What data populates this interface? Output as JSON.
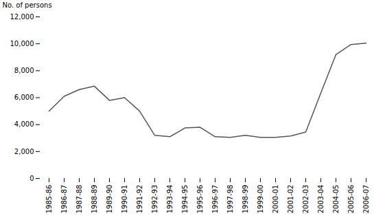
{
  "chart_data": {
    "type": "line",
    "categories": [
      "1985-86",
      "1986-87",
      "1987-88",
      "1988-89",
      "1989-90",
      "1990-91",
      "1991-92",
      "1992-93",
      "1993-94",
      "1994-95",
      "1995-96",
      "1996-97",
      "1997-98",
      "1998-99",
      "1999-00",
      "2000-01",
      "2001-02",
      "2002-03",
      "2003-04",
      "2004-05",
      "2005-06",
      "2006-07"
    ],
    "values": [
      5000,
      6100,
      6600,
      6850,
      5800,
      6000,
      5000,
      3200,
      3100,
      3750,
      3800,
      3100,
      3050,
      3200,
      3050,
      3050,
      3150,
      3450,
      6350,
      9200,
      9950,
      10050
    ],
    "color": "#555555",
    "ylabel": "No. of persons",
    "ylim": [
      0,
      12000
    ],
    "yticks": [
      0,
      {
        "value": 2000,
        "label": "2,000"
      },
      {
        "value": 4000,
        "label": "4,000"
      },
      {
        "value": 6000,
        "label": "6,000"
      },
      {
        "value": 8000,
        "label": "8,000"
      },
      {
        "value": 10000,
        "label": "10,000"
      },
      {
        "value": 12000,
        "label": "12,000"
      }
    ],
    "grid": false
  }
}
